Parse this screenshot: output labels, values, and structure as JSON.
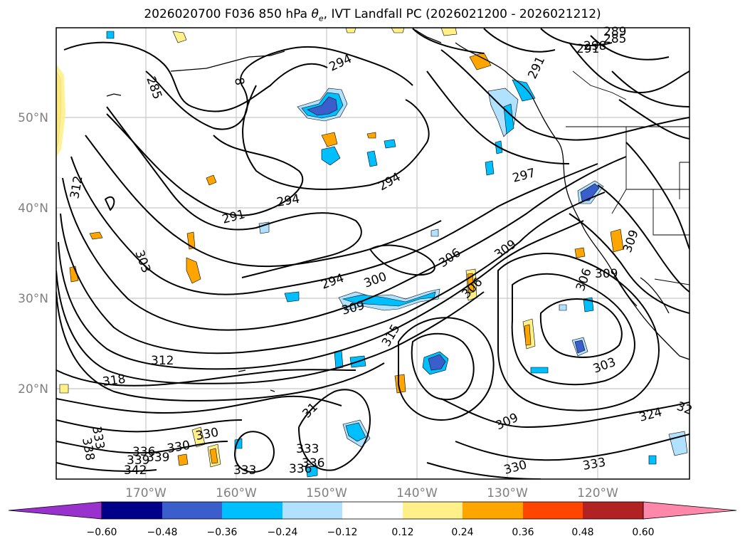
{
  "title": {
    "prefix": "2026020700 F036 850 hPa ",
    "theta_symbol": "θ",
    "theta_sub": "e",
    "suffix": ", IVT Landfall PC (2026021200 - 2026021212)"
  },
  "axes": {
    "lat_labels": [
      "50°N",
      "40°N",
      "30°N",
      "20°N"
    ],
    "lon_labels": [
      "170°W",
      "160°W",
      "150°W",
      "140°W",
      "130°W",
      "120°W"
    ]
  },
  "contour_labels": [
    "294",
    "285",
    "8",
    "291",
    "298",
    "289",
    "285",
    "291",
    "312",
    "294",
    "291",
    "294",
    "297",
    "303",
    "294",
    "300",
    "306",
    "309",
    "306",
    "309",
    "306",
    "309",
    "309",
    "315",
    "312",
    "318",
    "303",
    "324",
    "32",
    "309",
    "31",
    "330",
    "330",
    "333",
    "333",
    "333",
    "336",
    "336",
    "336",
    "339",
    "339",
    "342",
    "330",
    "333",
    "338"
  ],
  "colorbar": {
    "colors": [
      "#9932cc",
      "#00008b",
      "#3a5fcd",
      "#00bfff",
      "#b0e2ff",
      "#ffffff",
      "#fff08a",
      "#ffa500",
      "#ff4500",
      "#b22222",
      "#ff88aa"
    ],
    "ticks": [
      "−0.60",
      "−0.48",
      "−0.36",
      "−0.24",
      "−0.12",
      "0.12",
      "0.24",
      "0.36",
      "0.48",
      "0.60"
    ]
  }
}
